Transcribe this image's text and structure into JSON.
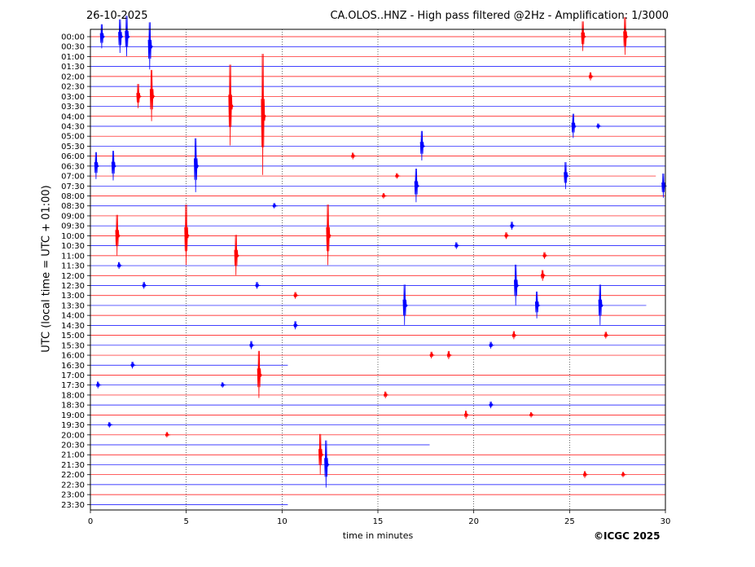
{
  "header": {
    "date": "26-10-2025",
    "title": "CA.OLOS..HNZ - High pass filtered @2Hz - Amplification: 1/3000"
  },
  "copyright": "©ICGC 2025",
  "chart_data": {
    "type": "line",
    "title": "CA.OLOS..HNZ - High pass filtered @2Hz - Amplification: 1/3000",
    "xlabel": "time in minutes",
    "ylabel": "UTC (local time = UTC + 01:00)",
    "xlim": [
      0,
      30
    ],
    "xticks": [
      0,
      5,
      10,
      15,
      20,
      25,
      30
    ],
    "grid": "vertical dotted lines every 5 minutes",
    "colors": {
      "trace_a": "#ff0000",
      "trace_b": "#0000ff"
    },
    "rows": [
      "00:00",
      "00:30",
      "01:00",
      "01:30",
      "02:00",
      "02:30",
      "03:00",
      "03:30",
      "04:00",
      "04:30",
      "05:00",
      "05:30",
      "06:00",
      "06:30",
      "07:00",
      "07:30",
      "08:00",
      "08:30",
      "09:00",
      "09:30",
      "10:00",
      "10:30",
      "11:00",
      "11:30",
      "12:00",
      "12:30",
      "13:00",
      "13:30",
      "14:00",
      "14:30",
      "15:00",
      "15:30",
      "16:00",
      "16:30",
      "17:00",
      "17:30",
      "18:00",
      "18:30",
      "19:00",
      "19:30",
      "20:00",
      "20:30",
      "21:00",
      "21:30",
      "22:00",
      "22:30",
      "23:00",
      "23:30"
    ],
    "row_colors": [
      "red",
      "blue",
      "red",
      "blue",
      "red",
      "blue",
      "red",
      "blue",
      "red",
      "blue",
      "red",
      "blue",
      "red",
      "blue",
      "red",
      "blue",
      "red",
      "blue",
      "red",
      "blue",
      "red",
      "blue",
      "red",
      "blue",
      "red",
      "blue",
      "red",
      "blue",
      "red",
      "blue",
      "red",
      "blue",
      "red",
      "blue",
      "red",
      "blue",
      "red",
      "blue",
      "red",
      "blue",
      "red",
      "blue",
      "red",
      "blue",
      "red",
      "blue",
      "red",
      "blue"
    ],
    "trace_end_minutes": [
      30,
      30,
      30,
      30,
      30,
      30,
      30,
      30,
      30,
      30,
      30,
      30,
      30,
      30,
      29.5,
      30,
      30,
      30,
      30,
      30,
      30,
      30,
      30,
      30,
      30,
      30,
      30,
      29,
      30,
      30,
      30,
      30,
      30,
      10.3,
      30,
      30,
      30,
      30,
      30,
      30,
      30,
      17.7,
      30,
      30,
      30,
      30,
      30,
      10.3
    ],
    "events": [
      {
        "row": 0,
        "t": 0.6,
        "amp": 18,
        "color": "blue"
      },
      {
        "row": 0,
        "t": 1.55,
        "amp": 25,
        "color": "blue"
      },
      {
        "row": 0,
        "t": 1.9,
        "amp": 30,
        "color": "blue"
      },
      {
        "row": 0,
        "t": 25.7,
        "amp": 22,
        "color": "red"
      },
      {
        "row": 0,
        "t": 27.9,
        "amp": 28,
        "color": "red"
      },
      {
        "row": 1,
        "t": 3.1,
        "amp": 35,
        "color": "blue"
      },
      {
        "row": 4,
        "t": 26.1,
        "amp": 6,
        "color": "red"
      },
      {
        "row": 6,
        "t": 2.5,
        "amp": 18,
        "color": "red"
      },
      {
        "row": 6,
        "t": 3.2,
        "amp": 38,
        "color": "red"
      },
      {
        "row": 7,
        "t": 7.3,
        "amp": 60,
        "color": "red"
      },
      {
        "row": 8,
        "t": 9.0,
        "amp": 90,
        "color": "red"
      },
      {
        "row": 9,
        "t": 26.5,
        "amp": 4,
        "color": "blue"
      },
      {
        "row": 9,
        "t": 25.2,
        "amp": 18,
        "color": "blue"
      },
      {
        "row": 11,
        "t": 17.3,
        "amp": 22,
        "color": "blue"
      },
      {
        "row": 12,
        "t": 13.7,
        "amp": 5,
        "color": "red"
      },
      {
        "row": 13,
        "t": 0.3,
        "amp": 20,
        "color": "blue"
      },
      {
        "row": 13,
        "t": 1.2,
        "amp": 22,
        "color": "blue"
      },
      {
        "row": 13,
        "t": 5.5,
        "amp": 40,
        "color": "blue"
      },
      {
        "row": 14,
        "t": 16.0,
        "amp": 4,
        "color": "red"
      },
      {
        "row": 14,
        "t": 24.8,
        "amp": 20,
        "color": "blue"
      },
      {
        "row": 15,
        "t": 17.0,
        "amp": 25,
        "color": "blue"
      },
      {
        "row": 15,
        "t": 29.9,
        "amp": 18,
        "color": "blue"
      },
      {
        "row": 16,
        "t": 15.3,
        "amp": 4,
        "color": "red"
      },
      {
        "row": 17,
        "t": 9.6,
        "amp": 4,
        "color": "blue"
      },
      {
        "row": 19,
        "t": 22.0,
        "amp": 6,
        "color": "blue"
      },
      {
        "row": 20,
        "t": 1.4,
        "amp": 30,
        "color": "red"
      },
      {
        "row": 20,
        "t": 5.0,
        "amp": 45,
        "color": "red"
      },
      {
        "row": 20,
        "t": 12.4,
        "amp": 45,
        "color": "red"
      },
      {
        "row": 20,
        "t": 21.7,
        "amp": 5,
        "color": "red"
      },
      {
        "row": 21,
        "t": 19.1,
        "amp": 5,
        "color": "blue"
      },
      {
        "row": 22,
        "t": 7.6,
        "amp": 30,
        "color": "red"
      },
      {
        "row": 22,
        "t": 23.7,
        "amp": 5,
        "color": "red"
      },
      {
        "row": 23,
        "t": 1.5,
        "amp": 5,
        "color": "blue"
      },
      {
        "row": 24,
        "t": 23.6,
        "amp": 8,
        "color": "red"
      },
      {
        "row": 25,
        "t": 2.8,
        "amp": 5,
        "color": "blue"
      },
      {
        "row": 25,
        "t": 8.7,
        "amp": 5,
        "color": "blue"
      },
      {
        "row": 25,
        "t": 22.2,
        "amp": 30,
        "color": "blue"
      },
      {
        "row": 26,
        "t": 10.7,
        "amp": 5,
        "color": "red"
      },
      {
        "row": 27,
        "t": 16.4,
        "amp": 30,
        "color": "blue"
      },
      {
        "row": 27,
        "t": 23.3,
        "amp": 20,
        "color": "blue"
      },
      {
        "row": 27,
        "t": 26.6,
        "amp": 30,
        "color": "blue"
      },
      {
        "row": 29,
        "t": 10.7,
        "amp": 6,
        "color": "blue"
      },
      {
        "row": 30,
        "t": 22.1,
        "amp": 6,
        "color": "red"
      },
      {
        "row": 30,
        "t": 26.9,
        "amp": 5,
        "color": "red"
      },
      {
        "row": 31,
        "t": 8.4,
        "amp": 6,
        "color": "blue"
      },
      {
        "row": 31,
        "t": 20.9,
        "amp": 5,
        "color": "blue"
      },
      {
        "row": 32,
        "t": 17.8,
        "amp": 5,
        "color": "red"
      },
      {
        "row": 32,
        "t": 18.7,
        "amp": 6,
        "color": "red"
      },
      {
        "row": 33,
        "t": 2.2,
        "amp": 5,
        "color": "blue"
      },
      {
        "row": 34,
        "t": 8.8,
        "amp": 35,
        "color": "red"
      },
      {
        "row": 35,
        "t": 0.4,
        "amp": 5,
        "color": "blue"
      },
      {
        "row": 35,
        "t": 6.9,
        "amp": 4,
        "color": "blue"
      },
      {
        "row": 36,
        "t": 15.4,
        "amp": 5,
        "color": "red"
      },
      {
        "row": 37,
        "t": 20.9,
        "amp": 5,
        "color": "blue"
      },
      {
        "row": 38,
        "t": 19.6,
        "amp": 6,
        "color": "red"
      },
      {
        "row": 38,
        "t": 23.0,
        "amp": 4,
        "color": "red"
      },
      {
        "row": 39,
        "t": 1.0,
        "amp": 4,
        "color": "blue"
      },
      {
        "row": 40,
        "t": 4.0,
        "amp": 4,
        "color": "red"
      },
      {
        "row": 42,
        "t": 12.0,
        "amp": 30,
        "color": "red"
      },
      {
        "row": 43,
        "t": 12.3,
        "amp": 35,
        "color": "blue"
      },
      {
        "row": 44,
        "t": 25.8,
        "amp": 5,
        "color": "red"
      },
      {
        "row": 44,
        "t": 27.8,
        "amp": 4,
        "color": "red"
      }
    ]
  }
}
